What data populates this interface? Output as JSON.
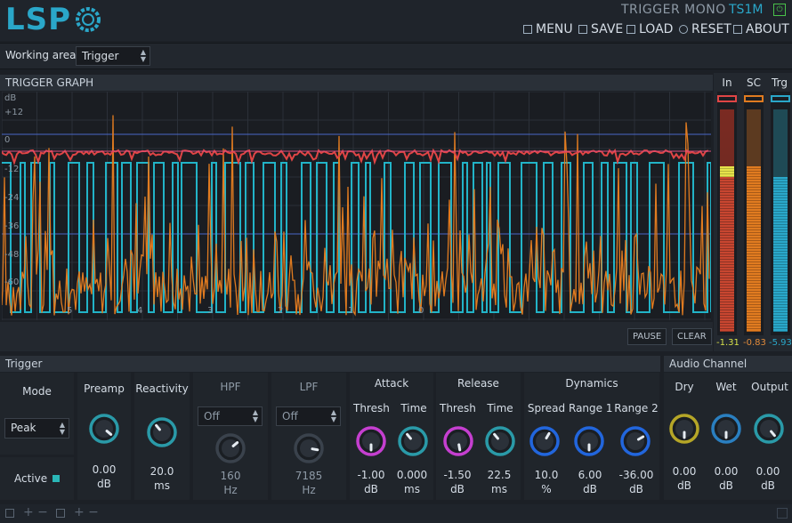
{
  "header": {
    "logo": "LSP",
    "plugin_name": "TRIGGER MONO",
    "plugin_version": "TS1M",
    "power": "⏻",
    "menu": [
      {
        "label": "MENU",
        "icon": "menu-icon"
      },
      {
        "label": "SAVE",
        "icon": "save-icon"
      },
      {
        "label": "LOAD",
        "icon": "load-icon"
      },
      {
        "label": "RESET",
        "icon": "reset-icon"
      },
      {
        "label": "ABOUT",
        "icon": "about-icon"
      }
    ]
  },
  "working_area": {
    "label": "Working area",
    "value": "Trigger"
  },
  "graph": {
    "title": "TRIGGER GRAPH",
    "y_unit": "dB",
    "y_ticks": [
      "+12",
      "0",
      "-12",
      "-24",
      "-36",
      "-48",
      "-60"
    ],
    "x_ticks": [
      "5",
      "4",
      "3",
      "2",
      "1",
      "0"
    ],
    "pause": "PAUSE",
    "clear": "CLEAR"
  },
  "meters": [
    {
      "label": "In",
      "value": "-1.31",
      "color": "#d9e34a"
    },
    {
      "label": "SC",
      "value": "-0.83",
      "color": "#e08a3a"
    },
    {
      "label": "Trg",
      "value": "-5.93",
      "color": "#2aa7c9"
    }
  ],
  "trigger": {
    "title": "Trigger",
    "mode": {
      "label": "Mode",
      "value": "Peak"
    },
    "active": "Active",
    "preamp": {
      "label": "Preamp",
      "value": "0.00",
      "unit": "dB"
    },
    "reactivity": {
      "label": "Reactivity",
      "value": "20.0",
      "unit": "ms"
    },
    "hpf": {
      "label": "HPF",
      "select": "Off",
      "value": "160",
      "unit": "Hz"
    },
    "lpf": {
      "label": "LPF",
      "select": "Off",
      "value": "7185",
      "unit": "Hz"
    },
    "attack": {
      "label": "Attack",
      "thresh_label": "Thresh",
      "time_label": "Time",
      "thresh": "-1.00",
      "thresh_unit": "dB",
      "time": "0.000",
      "time_unit": "ms"
    },
    "release": {
      "label": "Release",
      "thresh_label": "Thresh",
      "time_label": "Time",
      "thresh": "-1.50",
      "thresh_unit": "dB",
      "time": "22.5",
      "time_unit": "ms"
    },
    "dynamics": {
      "label": "Dynamics",
      "spread_label": "Spread",
      "range1_label": "Range 1",
      "range2_label": "Range 2",
      "spread": "10.0",
      "spread_unit": "%",
      "range1": "6.00",
      "range1_unit": "dB",
      "range2": "-36.00",
      "range2_unit": "dB"
    }
  },
  "audio_channel": {
    "title": "Audio Channel",
    "dry_label": "Dry",
    "wet_label": "Wet",
    "output_label": "Output",
    "dry": "0.00",
    "dry_unit": "dB",
    "wet": "0.00",
    "wet_unit": "dB",
    "output": "0.00",
    "output_unit": "dB"
  },
  "colors": {
    "accent": "#2aa7c9",
    "signal": "#e07b20",
    "envelope": "#e04545",
    "trigger": "#22b3c7",
    "knob_pink": "#c53fd0",
    "knob_blue": "#2266dd",
    "knob_yellow": "#b5a627",
    "knob_teal": "#2a9aa8"
  }
}
